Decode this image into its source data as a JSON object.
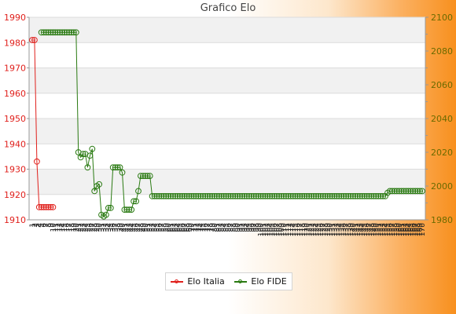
{
  "chart_data": {
    "type": "line",
    "title": "Grafico Elo",
    "y_left": {
      "min": 1910,
      "max": 1990,
      "ticks": [
        1910,
        1920,
        1930,
        1940,
        1950,
        1960,
        1970,
        1980,
        1990
      ]
    },
    "y_right": {
      "min": 1980,
      "max": 2100,
      "ticks": [
        1980,
        2000,
        2020,
        2040,
        2060,
        2080,
        2100
      ]
    },
    "grid": true,
    "legend_position": "bottom",
    "x": [
      1,
      2,
      3,
      4,
      5,
      6,
      7,
      8,
      9,
      10,
      11,
      12,
      13,
      14,
      15,
      16,
      17,
      18,
      19,
      20,
      21,
      22,
      23,
      24,
      25,
      26,
      27,
      28,
      29,
      30,
      31,
      32,
      33,
      34,
      35,
      36,
      37,
      38,
      39,
      40,
      41,
      42,
      43,
      44,
      45,
      46,
      47,
      48,
      49,
      50,
      51,
      52,
      53,
      54,
      55,
      56,
      57,
      58,
      59,
      60,
      61,
      62,
      63,
      64,
      65,
      66,
      67,
      68,
      69,
      70,
      71,
      72,
      73,
      74,
      75,
      76,
      77,
      78,
      79,
      80,
      81,
      82,
      83,
      84,
      85,
      86,
      87,
      88,
      89,
      90,
      91,
      92,
      93,
      94,
      95,
      96,
      97,
      98,
      99,
      100,
      101,
      102,
      103,
      104,
      105,
      106,
      107,
      108,
      109,
      110,
      111,
      112,
      113,
      114,
      115,
      116,
      117,
      118,
      119,
      120,
      121,
      122,
      123,
      124,
      125,
      126,
      127,
      128,
      129,
      130,
      131,
      132,
      133,
      134,
      135,
      136,
      137,
      138,
      139,
      140,
      141,
      142,
      143,
      144,
      145,
      146,
      147,
      148,
      149,
      150,
      151,
      152,
      153,
      154,
      155,
      156,
      157,
      158,
      159,
      160,
      161,
      162,
      163,
      164,
      165,
      166,
      167,
      168,
      169,
      170
    ],
    "xtick_labels": [
      "1",
      "2",
      "3",
      "4",
      "5",
      "6",
      "7",
      "8",
      "9",
      "10",
      "11",
      "12",
      "13",
      "14",
      "15",
      "16",
      "17",
      "18",
      "19",
      "20",
      "21",
      "22",
      "23",
      "24",
      "25",
      "26",
      "27",
      "28",
      "29",
      "30",
      "31",
      "32",
      "33",
      "34",
      "35",
      "36",
      "37",
      "38",
      "39",
      "40",
      "41",
      "42",
      "43",
      "44",
      "45",
      "46",
      "47",
      "48",
      "49",
      "50",
      "51",
      "52",
      "53",
      "54",
      "55",
      "56",
      "57",
      "58",
      "59",
      "60",
      "61",
      "62",
      "63",
      "64",
      "65",
      "66",
      "67",
      "68",
      "69",
      "70",
      "71",
      "72",
      "73",
      "74",
      "75",
      "76",
      "77",
      "78",
      "79",
      "80",
      "81",
      "82",
      "83",
      "84",
      "85",
      "86",
      "87",
      "88",
      "89",
      "90",
      "91",
      "92",
      "93",
      "94",
      "95",
      "96",
      "97",
      "98",
      "99",
      "100",
      "101",
      "102",
      "103",
      "104",
      "105",
      "106",
      "107",
      "108",
      "109",
      "110",
      "111",
      "112",
      "113",
      "114",
      "115",
      "116",
      "117",
      "118",
      "119",
      "120",
      "121",
      "122",
      "123",
      "124",
      "125",
      "126",
      "127",
      "128",
      "129",
      "130",
      "131",
      "132",
      "133",
      "134",
      "135",
      "136",
      "137",
      "138",
      "139",
      "140",
      "141",
      "142",
      "143",
      "144",
      "145",
      "146",
      "147",
      "148",
      "149",
      "150",
      "151",
      "152",
      "153",
      "154",
      "155",
      "156",
      "157",
      "158",
      "159",
      "160",
      "161",
      "162",
      "163",
      "164",
      "165",
      "166",
      "167",
      "168",
      "169",
      "170"
    ],
    "series": [
      {
        "name": "Elo Italia",
        "axis": "left",
        "color": "#e0201c",
        "x": [
          1,
          2,
          3,
          4,
          5,
          6,
          7,
          8,
          9,
          10
        ],
        "values": [
          1981,
          1981,
          1933,
          1915,
          1915,
          1915,
          1915,
          1915,
          1915,
          1915
        ]
      },
      {
        "name": "Elo FIDE",
        "axis": "right",
        "color": "#2a7a12",
        "x": [
          1,
          2,
          3,
          4,
          5,
          6,
          7,
          8,
          9,
          10,
          11,
          12,
          13,
          14,
          15,
          16,
          17,
          18,
          19,
          20,
          21,
          22,
          23,
          24,
          25,
          26,
          27,
          28,
          29,
          30,
          31,
          32,
          33,
          34,
          35,
          36,
          37,
          38,
          39,
          40,
          41,
          42,
          43,
          44,
          45,
          46,
          47,
          48,
          49,
          50,
          51,
          52,
          53,
          54,
          55,
          56,
          57,
          58,
          59,
          60,
          61,
          62,
          63,
          64,
          65,
          66,
          67,
          68,
          69,
          70,
          71,
          72,
          73,
          74,
          75,
          76,
          77,
          78,
          79,
          80,
          81,
          82,
          83,
          84,
          85,
          86,
          87,
          88,
          89,
          90,
          91,
          92,
          93,
          94,
          95,
          96,
          97,
          98,
          99,
          100,
          101,
          102,
          103,
          104,
          105,
          106,
          107,
          108,
          109,
          110,
          111,
          112,
          113,
          114,
          115,
          116,
          117,
          118,
          119,
          120,
          121,
          122,
          123,
          124,
          125,
          126,
          127,
          128,
          129,
          130,
          131,
          132,
          133,
          134,
          135,
          136,
          137,
          138,
          139,
          140,
          141,
          142,
          143,
          144,
          145,
          146,
          147,
          148,
          149,
          150,
          151,
          152,
          153,
          154,
          155,
          156,
          157,
          158,
          159,
          160,
          161,
          162,
          163,
          164,
          165,
          166,
          167,
          168,
          169,
          170
        ],
        "values": [
          null,
          null,
          null,
          null,
          2091,
          2091,
          2091,
          2091,
          2091,
          2091,
          2091,
          2091,
          2091,
          2091,
          2091,
          2091,
          2091,
          2091,
          2091,
          2091,
          2020,
          2017,
          2019,
          2019,
          2011,
          2018,
          2022,
          1997,
          2000,
          2001,
          1983,
          1982,
          1983,
          1987,
          1987,
          2011,
          2011,
          2011,
          2011,
          2008,
          1986,
          1986,
          1986,
          1986,
          1991,
          1991,
          1997,
          2006,
          2006,
          2006,
          2006,
          2006,
          1994,
          1994,
          1994,
          1994,
          1994,
          1994,
          1994,
          1994,
          1994,
          1994,
          1994,
          1994,
          1994,
          1994,
          1994,
          1994,
          1994,
          1994,
          1994,
          1994,
          1994,
          1994,
          1994,
          1994,
          1994,
          1994,
          1994,
          1994,
          1994,
          1994,
          1994,
          1994,
          1994,
          1994,
          1994,
          1994,
          1994,
          1994,
          1994,
          1994,
          1994,
          1994,
          1994,
          1994,
          1994,
          1994,
          1994,
          1994,
          1994,
          1994,
          1994,
          1994,
          1994,
          1994,
          1994,
          1994,
          1994,
          1994,
          1994,
          1994,
          1994,
          1994,
          1994,
          1994,
          1994,
          1994,
          1994,
          1994,
          1994,
          1994,
          1994,
          1994,
          1994,
          1994,
          1994,
          1994,
          1994,
          1994,
          1994,
          1994,
          1994,
          1994,
          1994,
          1994,
          1994,
          1994,
          1994,
          1994,
          1994,
          1994,
          1994,
          1994,
          1994,
          1994,
          1994,
          1994,
          1994,
          1994,
          1994,
          1994,
          1994,
          1994,
          1996,
          1997,
          1997,
          1997,
          1997,
          1997,
          1997,
          1997,
          1997,
          1997,
          1997,
          1997,
          1997,
          1997,
          1997,
          1997
        ]
      }
    ]
  }
}
